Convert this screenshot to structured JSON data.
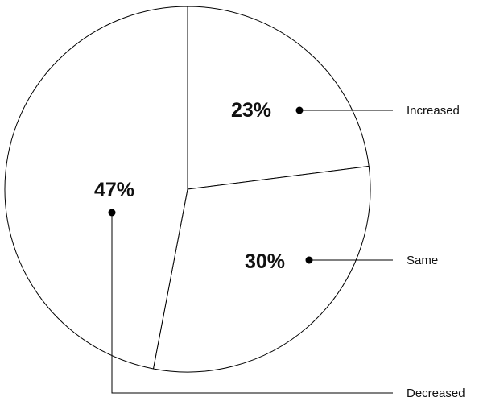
{
  "chart_data": {
    "type": "pie",
    "slices": [
      {
        "label": "Increased",
        "value": 23,
        "display": "23%"
      },
      {
        "label": "Same",
        "value": 30,
        "display": "30%"
      },
      {
        "label": "Decreased",
        "value": 47,
        "display": "47%"
      }
    ],
    "title": "",
    "stroke_color": "#000000",
    "fill_color": "#ffffff",
    "legend": "leader-lines-right"
  }
}
